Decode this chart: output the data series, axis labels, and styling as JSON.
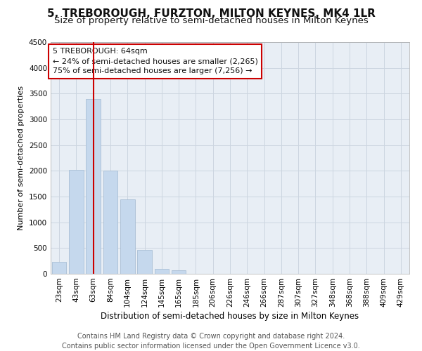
{
  "title": "5, TREBOROUGH, FURZTON, MILTON KEYNES, MK4 1LR",
  "subtitle": "Size of property relative to semi-detached houses in Milton Keynes",
  "xlabel": "Distribution of semi-detached houses by size in Milton Keynes",
  "ylabel": "Number of semi-detached properties",
  "footer_line1": "Contains HM Land Registry data © Crown copyright and database right 2024.",
  "footer_line2": "Contains public sector information licensed under the Open Government Licence v3.0.",
  "annotation_title": "5 TREBOROUGH: 64sqm",
  "annotation_line1": "← 24% of semi-detached houses are smaller (2,265)",
  "annotation_line2": "75% of semi-detached houses are larger (7,256) →",
  "bar_categories": [
    "23sqm",
    "43sqm",
    "63sqm",
    "84sqm",
    "104sqm",
    "124sqm",
    "145sqm",
    "165sqm",
    "185sqm",
    "206sqm",
    "226sqm",
    "246sqm",
    "266sqm",
    "287sqm",
    "307sqm",
    "327sqm",
    "348sqm",
    "368sqm",
    "388sqm",
    "409sqm",
    "429sqm"
  ],
  "bar_values": [
    230,
    2020,
    3400,
    2010,
    1450,
    470,
    100,
    70,
    0,
    0,
    0,
    0,
    0,
    0,
    0,
    0,
    0,
    0,
    0,
    0,
    0
  ],
  "bar_color": "#c5d8ed",
  "bar_edgecolor": "#a0b8d0",
  "vline_x_index": 2,
  "vline_color": "#cc0000",
  "ylim": [
    0,
    4500
  ],
  "yticks": [
    0,
    500,
    1000,
    1500,
    2000,
    2500,
    3000,
    3500,
    4000,
    4500
  ],
  "annotation_box_facecolor": "#ffffff",
  "annotation_box_edgecolor": "#cc0000",
  "grid_color": "#ccd5e0",
  "plot_bgcolor": "#e8eef5",
  "fig_bgcolor": "#ffffff",
  "title_fontsize": 11,
  "subtitle_fontsize": 9.5,
  "xlabel_fontsize": 8.5,
  "ylabel_fontsize": 8,
  "tick_fontsize": 7.5,
  "annotation_fontsize": 8,
  "footer_fontsize": 7
}
